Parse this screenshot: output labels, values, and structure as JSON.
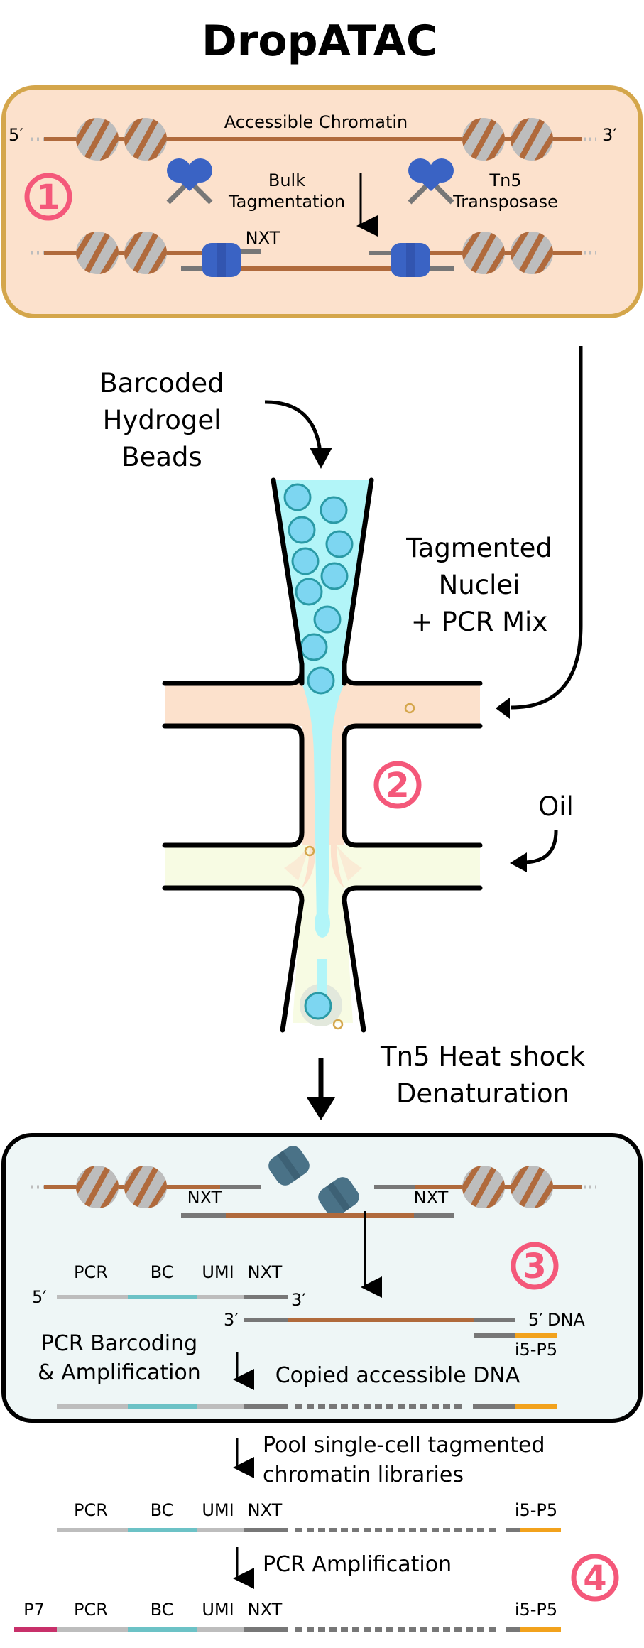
{
  "title": "DropATAC",
  "colors": {
    "step_pink": "#f4587a",
    "panel1_fill": "#fce1cc",
    "panel1_border": "#d4a64b",
    "panel3_fill": "#eef6f6",
    "dna_brown": "#b06a3c",
    "nucleosome_gray": "#bdbdbd",
    "tn5_blue": "#3a63c4",
    "tn5_dark": "#4a7287",
    "bead_cyan": "#7dd6f1",
    "aqueous_cyan": "#b2f5f8",
    "oil_yellow": "#f7fbe3",
    "bc_teal": "#6cc2c6",
    "i5p5_orange": "#f2a21c",
    "p7_magenta": "#c8306a"
  },
  "panel1": {
    "step_number": "1",
    "five_prime": "5′",
    "three_prime": "3′",
    "accessible_chromatin": "Accessible Chromatin",
    "bulk_line1": "Bulk",
    "bulk_line2": "Tagmentation",
    "tn5_line1": "Tn5",
    "tn5_line2": "Transposase",
    "nxt": "NXT"
  },
  "panel2": {
    "step_number": "2",
    "beads_line1": "Barcoded",
    "beads_line2": "Hydrogel",
    "beads_line3": "Beads",
    "nuclei_line1": "Tagmented",
    "nuclei_line2": "Nuclei",
    "nuclei_line3": "+ PCR Mix",
    "oil": "Oil",
    "heat_line1": "Tn5 Heat shock",
    "heat_line2": "Denaturation"
  },
  "panel3": {
    "step_number": "3",
    "nxt_left": "NXT",
    "nxt_right": "NXT",
    "five_prime": "5′",
    "three_prime": "3′",
    "three_prime_b": "3′",
    "five_prime_dna": "5′",
    "dna": "DNA",
    "pcr": "PCR",
    "bc": "BC",
    "umi": "UMI",
    "nxt": "NXT",
    "i5p5": "i5-P5",
    "barcoding_line1": "PCR Barcoding",
    "barcoding_line2": "& Amplification",
    "copied": "Copied accessible DNA"
  },
  "panel4": {
    "step_number": "4",
    "pool_line1": "Pool single-cell tagmented",
    "pool_line2": "chromatin libraries",
    "pcr": "PCR",
    "bc": "BC",
    "umi": "UMI",
    "nxt": "NXT",
    "i5p5": "i5-P5",
    "pcr_amplification": "PCR Amplification",
    "p7": "P7"
  }
}
